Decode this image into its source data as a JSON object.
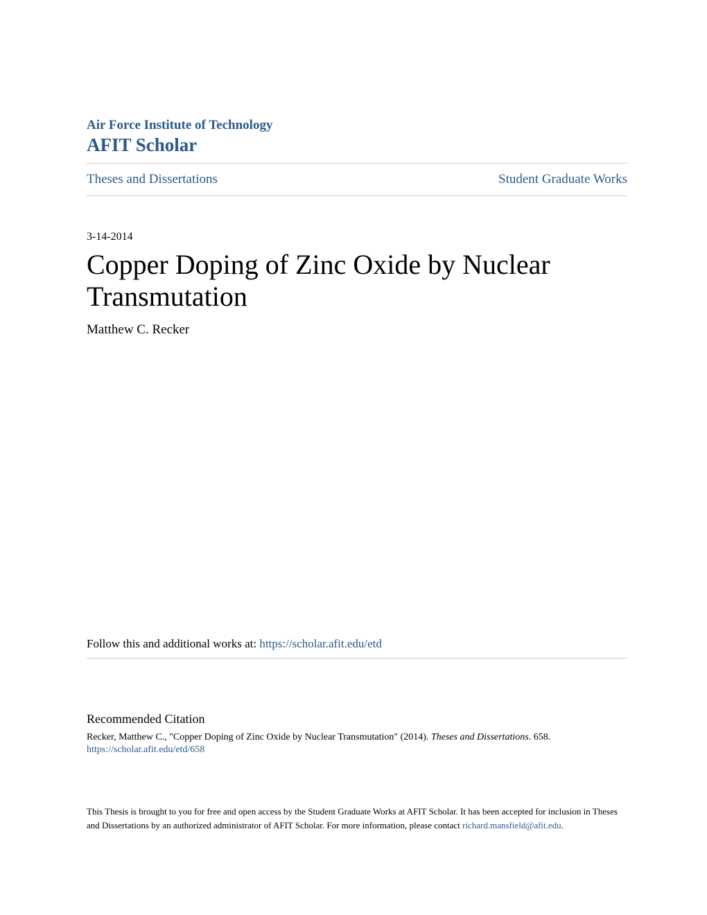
{
  "header": {
    "institution": "Air Force Institute of Technology",
    "scholar": "AFIT Scholar"
  },
  "nav": {
    "left": "Theses and Dissertations",
    "right": "Student Graduate Works"
  },
  "date": "3-14-2014",
  "title": "Copper Doping of Zinc Oxide by Nuclear Transmutation",
  "author": "Matthew C. Recker",
  "follow": {
    "label": "Follow this and additional works at: ",
    "url": "https://scholar.afit.edu/etd"
  },
  "citation": {
    "heading": "Recommended Citation",
    "text_prefix": "Recker, Matthew C., \"Copper Doping of Zinc Oxide by Nuclear Transmutation\" (2014). ",
    "text_italic": "Theses and Dissertations",
    "text_suffix": ". 658.",
    "url": "https://scholar.afit.edu/etd/658"
  },
  "footer": {
    "text_prefix": "This Thesis is brought to you for free and open access by the Student Graduate Works at AFIT Scholar. It has been accepted for inclusion in Theses and Dissertations by an authorized administrator of AFIT Scholar. For more information, please contact ",
    "email": "richard.mansfield@afit.edu",
    "text_suffix": "."
  },
  "colors": {
    "link_color": "#2a5a8a",
    "text_color": "#000000",
    "divider_color": "#cccccc",
    "background": "#ffffff"
  },
  "typography": {
    "font_family": "Georgia, serif",
    "title_fontsize": 40,
    "body_fontsize": 17,
    "small_fontsize": 14,
    "footer_fontsize": 13
  }
}
